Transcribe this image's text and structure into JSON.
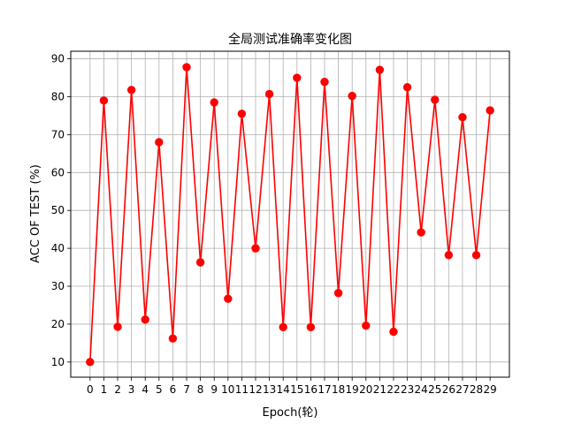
{
  "chart_data": {
    "type": "line",
    "title": "全局测试准确率变化图",
    "xlabel": "Epoch(轮)",
    "ylabel": "ACC OF TEST (%)",
    "x": [
      0,
      1,
      2,
      3,
      4,
      5,
      6,
      7,
      8,
      9,
      10,
      11,
      12,
      13,
      14,
      15,
      16,
      17,
      18,
      19,
      20,
      21,
      22,
      23,
      24,
      25,
      26,
      27,
      28,
      29
    ],
    "series": [
      {
        "values": [
          10.0,
          79.0,
          19.3,
          81.8,
          21.2,
          68.0,
          16.2,
          87.8,
          36.3,
          78.5,
          26.7,
          75.5,
          40.0,
          80.7,
          19.2,
          85.0,
          19.2,
          83.9,
          28.2,
          80.2,
          19.6,
          87.1,
          18.0,
          82.5,
          44.2,
          79.2,
          38.2,
          74.6,
          38.2,
          76.4
        ],
        "color": "#ff0000"
      }
    ],
    "xlim": [
      -1.4,
      30.4
    ],
    "ylim": [
      6,
      92
    ],
    "xticks": [
      "0",
      "1",
      "2",
      "3",
      "4",
      "5",
      "6",
      "7",
      "8",
      "9",
      "10",
      "11",
      "12",
      "13",
      "14",
      "15",
      "16",
      "17",
      "18",
      "19",
      "20",
      "21",
      "22",
      "23",
      "24",
      "25",
      "26",
      "27",
      "28",
      "29"
    ],
    "yticks": [
      10,
      20,
      30,
      40,
      50,
      60,
      70,
      80,
      90
    ],
    "grid": true,
    "legend": "none"
  }
}
